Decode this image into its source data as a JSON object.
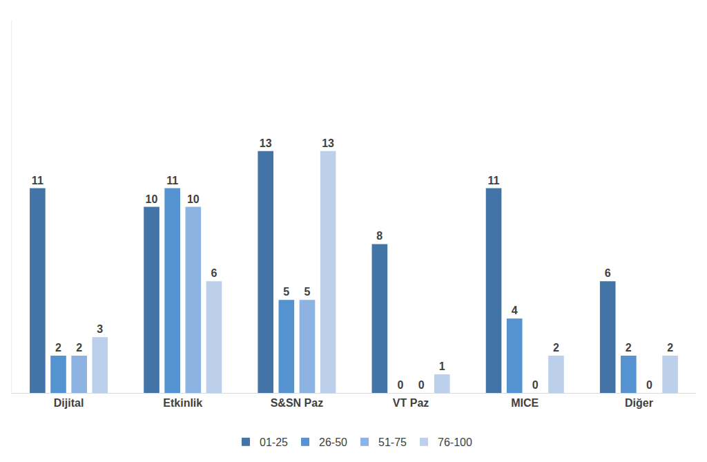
{
  "chart_data": {
    "type": "bar",
    "categories": [
      "Dijital",
      "Etkinlik",
      "S&SN Paz",
      "VT Paz",
      "MICE",
      "Diğer"
    ],
    "series": [
      {
        "name": "01-25",
        "color": "#4374a8",
        "values": [
          11,
          10,
          13,
          8,
          11,
          6
        ]
      },
      {
        "name": "26-50",
        "color": "#5593d0",
        "values": [
          2,
          11,
          5,
          0,
          4,
          2
        ]
      },
      {
        "name": "51-75",
        "color": "#8db3e2",
        "values": [
          2,
          10,
          5,
          0,
          0,
          0
        ]
      },
      {
        "name": "76-100",
        "color": "#bccfeb",
        "values": [
          3,
          6,
          13,
          1,
          2,
          2
        ]
      }
    ],
    "ylim": [
      0,
      20
    ],
    "yticks": [],
    "grid": false,
    "legend": "bottom",
    "data_labels": true,
    "tick_labels": "x"
  }
}
